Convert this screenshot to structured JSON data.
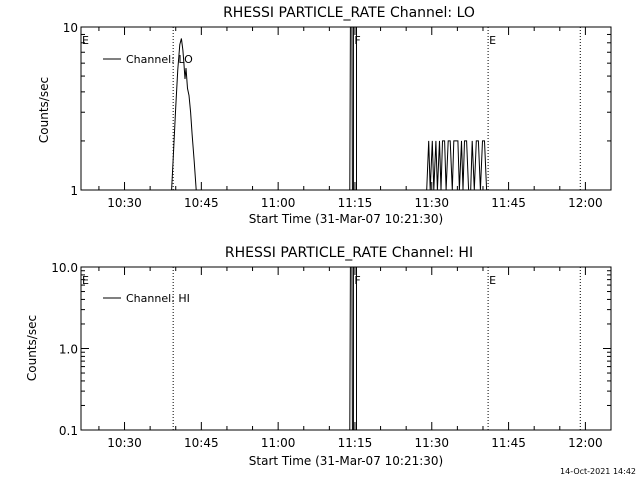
{
  "footer_timestamp": "14-Oct-2021 14:42",
  "chart_data": [
    {
      "type": "line",
      "title": "RHESSI PARTICLE_RATE Channel: LO",
      "xlabel": "Start Time (31-Mar-07 10:21:30)",
      "ylabel": "Counts/sec",
      "x_tick_labels": [
        "10:30",
        "10:45",
        "11:00",
        "11:15",
        "11:30",
        "11:45",
        "12:00"
      ],
      "x_tick_minutes": [
        630,
        645,
        660,
        675,
        690,
        705,
        720
      ],
      "xlim_minutes": [
        621.5,
        725
      ],
      "y_scale": "log",
      "ylim": [
        1,
        10
      ],
      "y_tick_labels": [
        "1",
        "10"
      ],
      "y_tick_values": [
        1,
        10
      ],
      "legend": "Channel: LO",
      "legend_position": "top-left",
      "vlines": [
        {
          "minute": 621.5,
          "label": "E",
          "style": "dotted"
        },
        {
          "minute": 639.5,
          "label": "",
          "style": "dotted"
        },
        {
          "minute": 674.7,
          "label": "F",
          "style": "solid"
        },
        {
          "minute": 675.3,
          "label": "",
          "style": "solid"
        },
        {
          "minute": 701.0,
          "label": "E",
          "style": "dotted"
        },
        {
          "minute": 719.0,
          "label": "",
          "style": "dotted"
        }
      ],
      "series": [
        {
          "points": [
            [
              639.2,
              1
            ],
            [
              639.6,
              1.8
            ],
            [
              640.0,
              3.2
            ],
            [
              640.4,
              5.5
            ],
            [
              640.8,
              7.8
            ],
            [
              641.1,
              8.5
            ],
            [
              641.4,
              7.2
            ],
            [
              641.6,
              6.0
            ],
            [
              641.8,
              4.8
            ],
            [
              642.0,
              5.6
            ],
            [
              642.3,
              4.2
            ],
            [
              642.6,
              3.8
            ],
            [
              642.9,
              3.0
            ],
            [
              643.2,
              2.2
            ],
            [
              643.6,
              1.5
            ],
            [
              644.0,
              1
            ],
            [
              674.0,
              1
            ],
            [
              674.1,
              10
            ],
            [
              674.4,
              10
            ],
            [
              674.5,
              1
            ],
            [
              689.0,
              1
            ],
            [
              689.4,
              2
            ],
            [
              689.7,
              1
            ],
            [
              690.1,
              2
            ],
            [
              690.4,
              1
            ],
            [
              690.8,
              2
            ],
            [
              691.1,
              1
            ],
            [
              691.5,
              2
            ],
            [
              691.8,
              1
            ],
            [
              692.1,
              2
            ],
            [
              692.5,
              2
            ],
            [
              692.8,
              1
            ],
            [
              693.2,
              2
            ],
            [
              693.6,
              2
            ],
            [
              694.0,
              1
            ],
            [
              694.3,
              2
            ],
            [
              694.7,
              2
            ],
            [
              695.1,
              2
            ],
            [
              695.4,
              1
            ],
            [
              695.8,
              2
            ],
            [
              696.1,
              1
            ],
            [
              696.4,
              2
            ],
            [
              696.8,
              2
            ],
            [
              697.2,
              1
            ],
            [
              697.6,
              1
            ],
            [
              697.9,
              2
            ],
            [
              698.3,
              1
            ],
            [
              698.7,
              2
            ],
            [
              699.1,
              2
            ],
            [
              699.5,
              1
            ],
            [
              699.9,
              2
            ],
            [
              700.3,
              2
            ],
            [
              700.7,
              1
            ],
            [
              701.0,
              1
            ]
          ]
        }
      ]
    },
    {
      "type": "line",
      "title": "RHESSI PARTICLE_RATE Channel: HI",
      "xlabel": "Start Time (31-Mar-07 10:21:30)",
      "ylabel": "Counts/sec",
      "x_tick_labels": [
        "10:30",
        "10:45",
        "11:00",
        "11:15",
        "11:30",
        "11:45",
        "12:00"
      ],
      "x_tick_minutes": [
        630,
        645,
        660,
        675,
        690,
        705,
        720
      ],
      "xlim_minutes": [
        621.5,
        725
      ],
      "y_scale": "log",
      "ylim": [
        0.1,
        10
      ],
      "y_tick_labels": [
        "0.1",
        "1.0",
        "10.0"
      ],
      "y_tick_values": [
        0.1,
        1,
        10
      ],
      "legend": "Channel: HI",
      "legend_position": "top-left",
      "vlines": [
        {
          "minute": 621.5,
          "label": "E",
          "style": "dotted"
        },
        {
          "minute": 639.5,
          "label": "",
          "style": "dotted"
        },
        {
          "minute": 674.7,
          "label": "F",
          "style": "solid"
        },
        {
          "minute": 675.3,
          "label": "",
          "style": "solid"
        },
        {
          "minute": 701.0,
          "label": "E",
          "style": "dotted"
        },
        {
          "minute": 719.0,
          "label": "",
          "style": "dotted"
        }
      ],
      "series": [
        {
          "points": [
            [
              674.0,
              0.1
            ],
            [
              674.1,
              10
            ],
            [
              674.4,
              10
            ],
            [
              674.5,
              0.1
            ]
          ]
        }
      ]
    }
  ]
}
